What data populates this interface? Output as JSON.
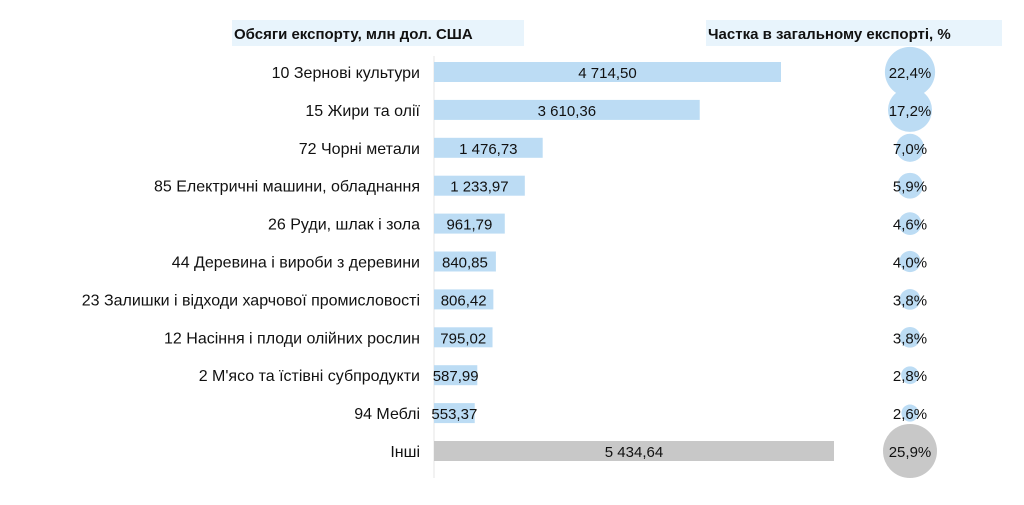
{
  "chart_data": {
    "type": "bar",
    "headers": {
      "left": "Обсяги експорту, млн дол. США",
      "right": "Частка в загальному експорті, %"
    },
    "categories": [
      "10 Зернові культури",
      "15 Жири та олії",
      "72 Чорні метали",
      "85 Електричні машини, обладнання",
      "26 Руди, шлак і зола",
      "44 Деревина і вироби з деревини",
      "23 Залишки і відходи харчової промисловості",
      "12 Насіння і плоди олійних рослин",
      "2 М'ясо та їстівні субпродукти",
      "94 Меблі",
      "Інші"
    ],
    "values": [
      4714.5,
      3610.36,
      1476.73,
      1233.97,
      961.79,
      840.85,
      806.42,
      795.02,
      587.99,
      553.37,
      5434.64
    ],
    "value_labels": [
      "4 714,50",
      "3 610,36",
      "1 476,73",
      "1 233,97",
      "961,79",
      "840,85",
      "806,42",
      "795,02",
      "587,99",
      "553,37",
      "5 434,64"
    ],
    "shares": [
      22.4,
      17.2,
      7.0,
      5.9,
      4.6,
      4.0,
      3.8,
      3.8,
      2.8,
      2.6,
      25.9
    ],
    "share_labels": [
      "22,4%",
      "17,2%",
      "7,0%",
      "5,9%",
      "4,6%",
      "4,0%",
      "3,8%",
      "3,8%",
      "2,8%",
      "2,6%",
      "25,9%"
    ],
    "colors": {
      "bar": "#bcdcf4",
      "bar_other": "#c8c8c8",
      "bubble": "#bcdcf4",
      "bubble_other": "#c8c8c8",
      "header_bg": "#e8f4fc"
    },
    "grid": false,
    "legend": "none"
  }
}
